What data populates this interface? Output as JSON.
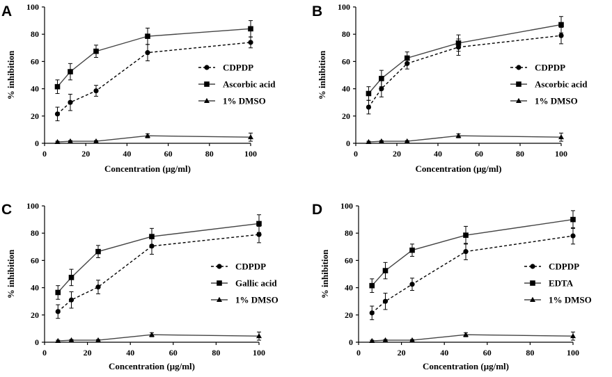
{
  "chart_data": [
    {
      "panel": "A",
      "type": "line",
      "xlabel": "Concentration (μg/ml)",
      "ylabel": "% inhibition",
      "xlim": [
        0,
        100
      ],
      "ylim": [
        0,
        100
      ],
      "xticks": [
        "0",
        "20",
        "40",
        "60",
        "80",
        "100"
      ],
      "yticks": [
        "0",
        "20",
        "40",
        "60",
        "80",
        "100"
      ],
      "x": [
        6.25,
        12.5,
        25,
        50,
        100
      ],
      "series": [
        {
          "name": "CDPDP",
          "marker": "circle",
          "line": "dashed",
          "values": [
            21.5,
            30,
            38.5,
            66.5,
            74
          ],
          "errors": [
            5,
            6,
            4,
            6,
            4
          ]
        },
        {
          "name": "Ascorbic acid",
          "marker": "square",
          "line": "solid",
          "values": [
            41.5,
            52.5,
            67.5,
            78.5,
            84
          ],
          "errors": [
            5,
            6,
            4.5,
            6,
            6
          ]
        },
        {
          "name": "1% DMSO",
          "marker": "triangle",
          "line": "solid",
          "values": [
            1,
            1.5,
            1.5,
            5.5,
            4.5
          ],
          "errors": [
            0.5,
            0.5,
            0.5,
            1.5,
            3
          ]
        }
      ]
    },
    {
      "panel": "B",
      "type": "line",
      "xlabel": "Concentration (μg/ml)",
      "ylabel": "% inhibition",
      "xlim": [
        0,
        100
      ],
      "ylim": [
        0,
        100
      ],
      "xticks": [
        "0",
        "20",
        "40",
        "60",
        "80",
        "100"
      ],
      "yticks": [
        "0",
        "20",
        "40",
        "60",
        "80",
        "100"
      ],
      "x": [
        6.25,
        12.5,
        25,
        50,
        100
      ],
      "series": [
        {
          "name": "CDPDP",
          "marker": "circle",
          "line": "dashed",
          "values": [
            26.5,
            40,
            58.5,
            70.5,
            79
          ],
          "errors": [
            5,
            6,
            4,
            6,
            6
          ]
        },
        {
          "name": "Ascorbic acid",
          "marker": "square",
          "line": "solid",
          "values": [
            36.5,
            47.5,
            62.5,
            73.5,
            87
          ],
          "errors": [
            5,
            6,
            4.5,
            6,
            6
          ]
        },
        {
          "name": "1% DMSO",
          "marker": "triangle",
          "line": "solid",
          "values": [
            1,
            1.5,
            1.5,
            5.5,
            4.5
          ],
          "errors": [
            0.5,
            0.5,
            0.5,
            1.5,
            3
          ]
        }
      ]
    },
    {
      "panel": "C",
      "type": "line",
      "xlabel": "Concentration (μg/ml)",
      "ylabel": "% inhibition",
      "xlim": [
        0,
        100
      ],
      "ylim": [
        0,
        100
      ],
      "xticks": [
        "0",
        "20",
        "40",
        "60",
        "80",
        "100"
      ],
      "yticks": [
        "0",
        "20",
        "40",
        "60",
        "80",
        "100"
      ],
      "x": [
        6.25,
        12.5,
        25,
        50,
        100
      ],
      "series": [
        {
          "name": "CDPDP",
          "marker": "circle",
          "line": "dashed",
          "values": [
            22.5,
            31,
            40.5,
            70.5,
            79
          ],
          "errors": [
            5,
            6,
            5,
            6,
            6
          ]
        },
        {
          "name": "Gallic acid",
          "marker": "square",
          "line": "solid",
          "values": [
            36.5,
            47.5,
            66.5,
            77.5,
            87
          ],
          "errors": [
            5,
            6,
            4.5,
            6,
            6.5
          ]
        },
        {
          "name": "1% DMSO",
          "marker": "triangle",
          "line": "solid",
          "values": [
            1,
            1.5,
            1.5,
            5.5,
            4.5
          ],
          "errors": [
            0.5,
            0.5,
            0.5,
            1.5,
            3
          ]
        }
      ]
    },
    {
      "panel": "D",
      "type": "line",
      "xlabel": "Concentration (μg/ml)",
      "ylabel": "% inhibition",
      "xlim": [
        0,
        100
      ],
      "ylim": [
        0,
        100
      ],
      "xticks": [
        "0",
        "20",
        "40",
        "60",
        "80",
        "100"
      ],
      "yticks": [
        "0",
        "20",
        "40",
        "60",
        "80",
        "100"
      ],
      "x": [
        6.25,
        12.5,
        25,
        50,
        100
      ],
      "series": [
        {
          "name": "CDPDP",
          "marker": "circle",
          "line": "dashed",
          "values": [
            21.5,
            30,
            42.5,
            66.5,
            78
          ],
          "errors": [
            5,
            6,
            4.5,
            6,
            6
          ]
        },
        {
          "name": "EDTA",
          "marker": "square",
          "line": "solid",
          "values": [
            41.5,
            52.5,
            67.5,
            78.5,
            90
          ],
          "errors": [
            5,
            6,
            4.5,
            6.5,
            6.5
          ]
        },
        {
          "name": "1% DMSO",
          "marker": "triangle",
          "line": "solid",
          "values": [
            1,
            1.5,
            1.5,
            5.5,
            4.5
          ],
          "errors": [
            0.5,
            0.5,
            0.5,
            1.5,
            3
          ]
        }
      ]
    }
  ]
}
